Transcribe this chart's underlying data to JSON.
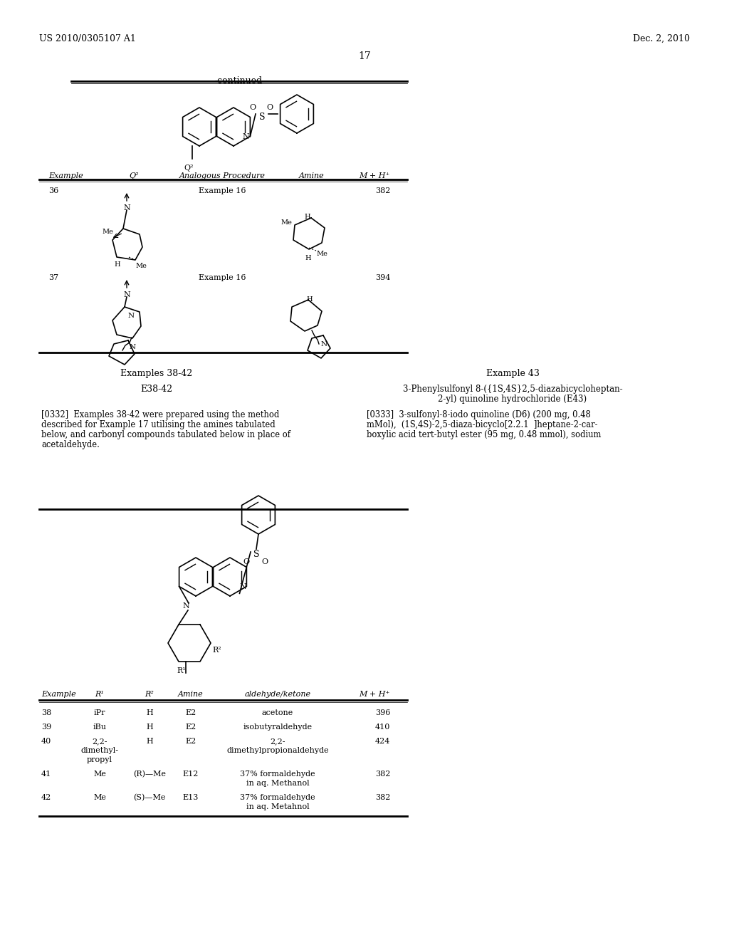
{
  "page_number": "17",
  "header_left": "US 2010/0305107 A1",
  "header_right": "Dec. 2, 2010",
  "continued_text": "-continued",
  "table1_headers": [
    "Example",
    "Q²",
    "Analogous Procedure",
    "Amine",
    "M + H⁺"
  ],
  "section_left_title": "Examples 38-42",
  "section_left_subtitle": "E38-42",
  "section_left_para": "[0332]  Examples 38-42 were prepared using the method\ndescribed for Example 17 utilising the amines tabulated\nbelow, and carbonyl compounds tabulated below in place of\nacetaldehyde.",
  "section_right_title": "Example 43",
  "section_right_subtitle1": "3-Phenylsulfonyl 8-({1S,4S}2,5-diazabicycloheptan-",
  "section_right_subtitle2": "2-yl) quinoline hydrochloride (E43)",
  "section_right_para1": "[0333]  3-sulfonyl-8-iodo quinoline (D6) (200 mg, 0.48",
  "section_right_para2": "mMol),  (1S,4S)-2,5-diaza-bicyclo[2.2.1  ]heptane-2-car-",
  "section_right_para3": "boxylic acid tert-butyl ester (95 mg, 0.48 mmol), sodium",
  "table2_rows": [
    [
      "38",
      "iPr",
      "H",
      "E2",
      "acetone",
      "396"
    ],
    [
      "39",
      "iBu",
      "H",
      "E2",
      "isobutyraldehyde",
      "410"
    ],
    [
      "40",
      "2,2-\ndimethyl-\npropyl",
      "H",
      "E2",
      "2,2-\ndimethylpropionaldehyde",
      "424"
    ],
    [
      "41",
      "Me",
      "(R)—Me",
      "E12",
      "37% formaldehyde\nin aq. Methanol",
      "382"
    ],
    [
      "42",
      "Me",
      "(S)—Me",
      "E13",
      "37% formaldehyde\nin aq. Metahnol",
      "382"
    ]
  ],
  "background_color": "#ffffff"
}
